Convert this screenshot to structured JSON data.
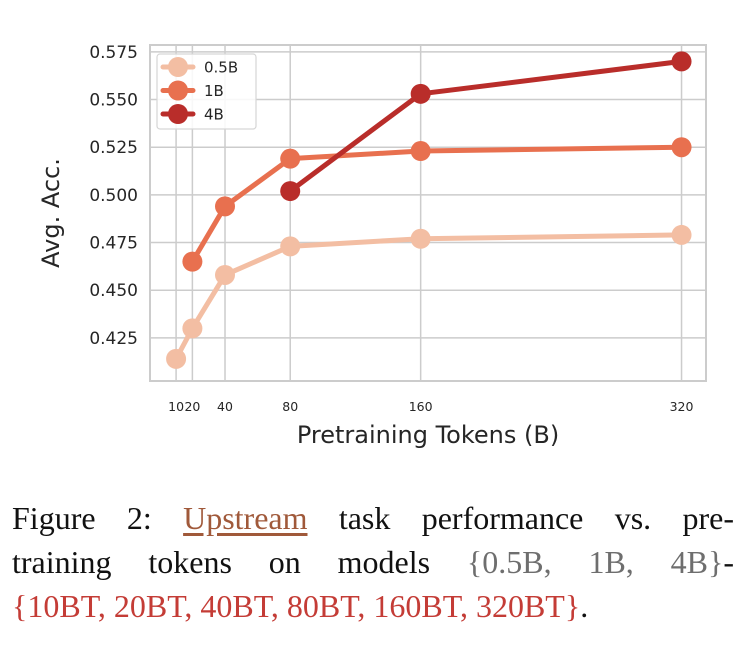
{
  "chart_data": {
    "type": "line",
    "xlabel": "Pretraining Tokens (B)",
    "ylabel": "Avg. Acc.",
    "xticks": [
      10,
      20,
      40,
      80,
      160,
      320
    ],
    "xtick_labels": [
      "10",
      "20",
      "40",
      "80",
      "160",
      "320"
    ],
    "yticks": [
      0.425,
      0.45,
      0.475,
      0.5,
      0.525,
      0.55,
      0.575
    ],
    "ytick_labels": [
      "0.425",
      "0.450",
      "0.475",
      "0.500",
      "0.525",
      "0.550",
      "0.575"
    ],
    "xlim": [
      -6,
      335
    ],
    "ylim": [
      0.4024,
      0.5786
    ],
    "grid": true,
    "legend": "top-left",
    "series": [
      {
        "name": "0.5B",
        "color": "#f3bea3",
        "x": [
          10,
          20,
          40,
          80,
          160,
          320
        ],
        "y": [
          0.414,
          0.43,
          0.458,
          0.473,
          0.477,
          0.479
        ]
      },
      {
        "name": "1B",
        "color": "#e8704f",
        "x": [
          20,
          40,
          80,
          160,
          320
        ],
        "y": [
          0.465,
          0.494,
          0.519,
          0.523,
          0.525
        ]
      },
      {
        "name": "4B",
        "color": "#b92d2a",
        "x": [
          80,
          160,
          320
        ],
        "y": [
          0.502,
          0.553,
          0.57
        ]
      }
    ]
  },
  "caption": {
    "line1": {
      "prefix": "Figure 2: ",
      "link": "Upstream",
      "rest": " task performance vs. pre-"
    },
    "line2": {
      "text": "training tokens on models ",
      "models": "{0.5B, 1B, 4B}",
      "dash": "-"
    },
    "line3": {
      "tokens": "{10BT, 20BT, 40BT, 80BT, 160BT, 320BT}",
      "end": "."
    }
  }
}
